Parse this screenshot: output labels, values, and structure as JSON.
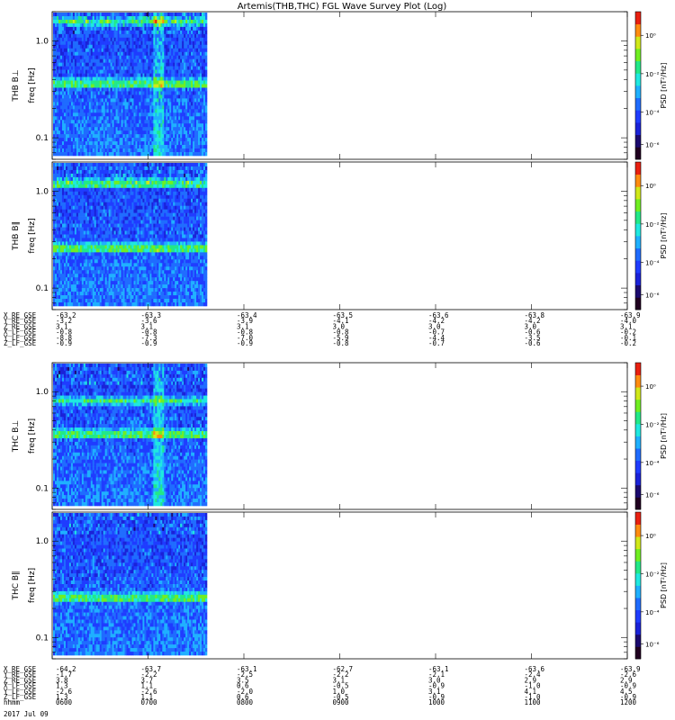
{
  "title": "Artemis(THB,THC) FGL Wave Survey Plot (Log)",
  "colorbar_label": "PSD [nT²/Hz]",
  "colorbar_ticks": [
    "10⁰",
    "10⁻²",
    "10⁻⁴",
    "10⁻⁶"
  ],
  "chart_data": {
    "type": "heatmap",
    "time_range": [
      "0600",
      "1200"
    ],
    "data_extent": [
      "0600",
      "0730"
    ],
    "ylim": [
      0.06,
      2.0
    ],
    "yscale": "log",
    "y_ticks": [
      "1.0",
      "0.1"
    ],
    "zscale": "log",
    "panels": [
      {
        "name": "THB B⊥",
        "ylabel": "THB B⊥",
        "yunit": "freq [Hz]",
        "bands": [
          0.35,
          1.6
        ]
      },
      {
        "name": "THB B∥",
        "ylabel": "THB B∥",
        "yunit": "freq [Hz]",
        "bands": [
          0.25,
          1.2
        ]
      },
      {
        "name": "THC B⊥",
        "ylabel": "THC B⊥",
        "yunit": "freq [Hz]",
        "bands": [
          0.35,
          0.8
        ]
      },
      {
        "name": "THC B∥",
        "ylabel": "THC B∥",
        "yunit": "freq [Hz]",
        "bands": [
          0.25
        ]
      }
    ]
  },
  "ephem_thb": {
    "rows": [
      {
        "label": "X_RE_GSE",
        "values": [
          "-63.2",
          "-63.3",
          "-63.4",
          "-63.5",
          "-63.6",
          "-63.8",
          "-63.9"
        ]
      },
      {
        "label": "Y_RE_GSE",
        "values": [
          "-3.2",
          "-3.6",
          "-3.9",
          "-4.1",
          "-4.2",
          "-4.2",
          "-4.0"
        ]
      },
      {
        "label": "Z_RE_GSE",
        "values": [
          "3.1",
          "3.1",
          "3.1",
          "3.0",
          "3.0",
          "3.0",
          "3.1"
        ]
      },
      {
        "label": "X_LF_GSE",
        "values": [
          "-0.8",
          "-0.8",
          "-0.8",
          "-0.8",
          "-0.7",
          "-0.6",
          "-0.2"
        ]
      },
      {
        "label": "Y_LF_GSE",
        "values": [
          "-8.8",
          "-7.3",
          "-7.0",
          "-5.9",
          "-4.4",
          "-3.5",
          "-0.1"
        ]
      },
      {
        "label": "Z_LF_GSE",
        "values": [
          "-0.9",
          "-0.9",
          "-0.9",
          "-0.8",
          "-0.7",
          "-0.6",
          "-0.2"
        ]
      }
    ]
  },
  "ephem_thc": {
    "rows": [
      {
        "label": "X_RE_GSE",
        "values": [
          "-64.2",
          "-63.7",
          "-63.1",
          "-62.7",
          "-63.1",
          "-63.6",
          "-63.9"
        ]
      },
      {
        "label": "Y_RE_GSE",
        "values": [
          "-1.7",
          "-2.2",
          "-2.5",
          "-2.2",
          "-2.1",
          "-2.4",
          "-2.6"
        ]
      },
      {
        "label": "Z_RE_GSE",
        "values": [
          "3.8",
          "3.7",
          "3.5",
          "3.1",
          "3.0",
          "2.9",
          "2.9"
        ]
      },
      {
        "label": "X_LF_GSE",
        "values": [
          "1.3",
          "1.1",
          "0.6",
          "-0.5",
          "-0.9",
          "-1.0",
          "-0.9"
        ]
      },
      {
        "label": "Y_LF_GSE",
        "values": [
          "-2.6",
          "-2.6",
          "-2.0",
          "1.0",
          "3.1",
          "4.1",
          "4.5"
        ]
      },
      {
        "label": "Z_LF_GSE",
        "values": [
          "1.3",
          "1.1",
          "0.6",
          "-0.5",
          "-0.9",
          "-1.0",
          "-0.9"
        ]
      },
      {
        "label": "hhmm",
        "values": [
          "0600",
          "0700",
          "0800",
          "0900",
          "1000",
          "1100",
          "1200"
        ]
      }
    ]
  },
  "date_label": "2017 Jul 09",
  "colors": {
    "colormap": [
      "#200020",
      "#1b0a6e",
      "#1a22d8",
      "#1f3cff",
      "#1f6cff",
      "#1fb0ff",
      "#1fe8e0",
      "#22e888",
      "#70ee22",
      "#d0e81a",
      "#ff8c10",
      "#e82010"
    ]
  }
}
